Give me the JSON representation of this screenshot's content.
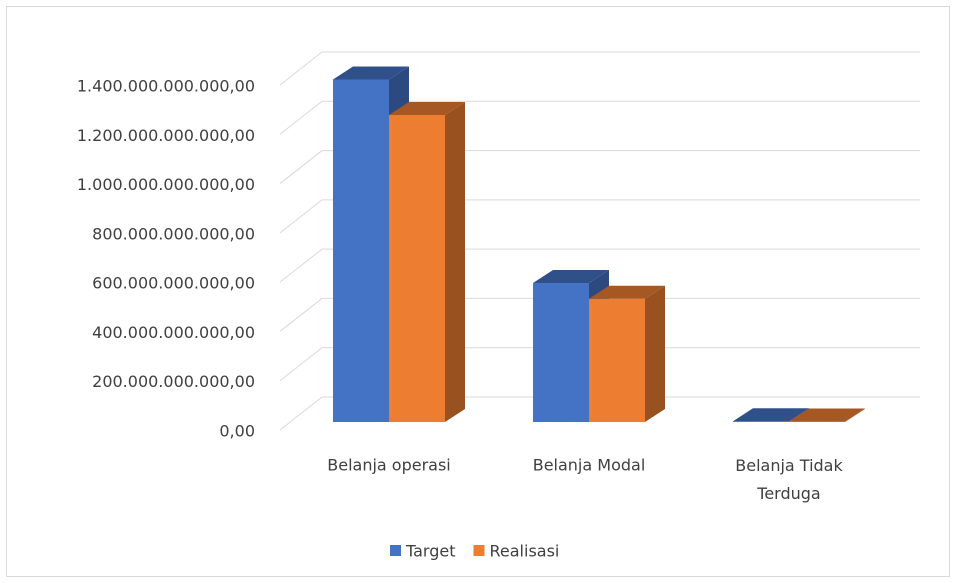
{
  "chart_data": {
    "type": "bar3d",
    "categories": [
      "Belanja operasi",
      "Belanja Modal",
      "Belanja Tidak Terduga"
    ],
    "series": [
      {
        "name": "Target",
        "color": "#4472c4",
        "values": [
          1390000000000,
          564000000000,
          3000000000
        ]
      },
      {
        "name": "Realisasi",
        "color": "#ed7d31",
        "values": [
          1246000000000,
          500000000000,
          2000000000
        ]
      }
    ],
    "ylim": [
      0,
      1400000000000
    ],
    "yticks": [
      {
        "value": 0,
        "label": "0,00"
      },
      {
        "value": 200000000000,
        "label": "200.000.000.000,00"
      },
      {
        "value": 400000000000,
        "label": "400.000.000.000,00"
      },
      {
        "value": 600000000000,
        "label": "600.000.000.000,00"
      },
      {
        "value": 800000000000,
        "label": "800.000.000.000,00"
      },
      {
        "value": 1000000000000,
        "label": "1.000.000.000.000,00"
      },
      {
        "value": 1200000000000,
        "label": "1.200.000.000.000,00"
      },
      {
        "value": 1400000000000,
        "label": "1.400.000.000.000,00"
      }
    ],
    "grid": true,
    "legend": "bottom"
  }
}
